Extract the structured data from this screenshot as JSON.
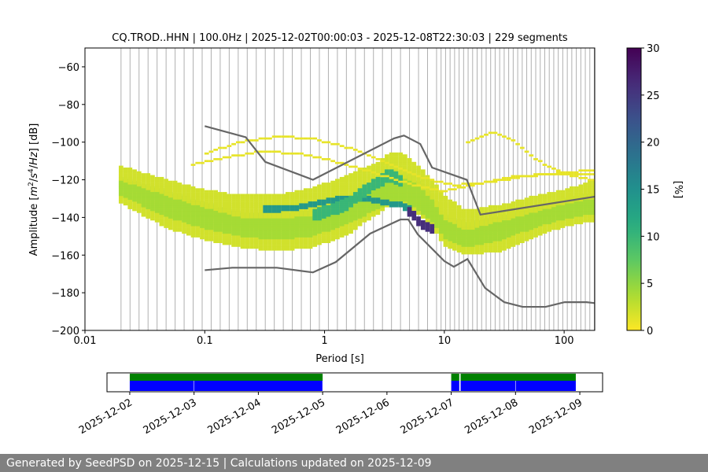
{
  "title": "CQ.TROD..HHN | 100.0Hz | 2025-12-02T00:00:03 - 2025-12-08T22:30:03 | 229 segments",
  "footer": "Generated by SeedPSD on 2025-12-15 | Calculations updated on 2025-12-09",
  "chart_data": [
    {
      "type": "heatmap",
      "title": "CQ.TROD..HHN | 100.0Hz | 2025-12-02T00:00:03 - 2025-12-08T22:30:03 | 229 segments",
      "xlabel": "Period [s]",
      "ylabel_parts": [
        "Amplitude [",
        "m",
        "2",
        "/",
        "s",
        "4",
        "/",
        "Hz",
        "] [dB]"
      ],
      "x_scale": "log",
      "xlim": [
        0.01,
        180
      ],
      "ylim": [
        -200,
        -50
      ],
      "x_ticks": [
        0.01,
        0.1,
        1,
        10,
        100
      ],
      "x_tick_labels": [
        "0.01",
        "0.1",
        "1",
        "10",
        "100"
      ],
      "y_ticks": [
        -200,
        -180,
        -160,
        -140,
        -120,
        -100,
        -80,
        -60
      ],
      "y_tick_labels": [
        "−200",
        "−180",
        "−160",
        "−140",
        "−120",
        "−100",
        "−80",
        "−60"
      ],
      "grid": "vertical lines at period bin centers",
      "colorbar": {
        "label": "[%]",
        "range": [
          0,
          30
        ],
        "ticks": [
          0,
          5,
          10,
          15,
          20,
          25,
          30
        ],
        "colormap": "viridis_r"
      },
      "psd_density_bands": [
        {
          "x": [
            0.019,
            0.05,
            0.1,
            0.2,
            0.4,
            0.8,
            1.5,
            2.5,
            3.5,
            4.5,
            6,
            8,
            10,
            15,
            30,
            60,
            100,
            180
          ],
          "low": [
            -124,
            -133,
            -140,
            -145,
            -147,
            -145,
            -139,
            -133,
            -130,
            -130,
            -134,
            -140,
            -148,
            -152,
            -147,
            -141,
            -137,
            -134
          ],
          "high": [
            -118,
            -126,
            -132,
            -137,
            -138,
            -136,
            -130,
            -124,
            -118,
            -116,
            -120,
            -128,
            -138,
            -143,
            -139,
            -134,
            -130,
            -127
          ],
          "level": 8
        },
        {
          "x": [
            0.019,
            0.05,
            0.1,
            0.2,
            0.4,
            0.8,
            1.5,
            2.5,
            3.5,
            4.5,
            6,
            8,
            10,
            15,
            30,
            60,
            100,
            180
          ],
          "low": [
            -132,
            -146,
            -152,
            -156,
            -158,
            -156,
            -150,
            -140,
            -134,
            -133,
            -138,
            -146,
            -155,
            -160,
            -158,
            -150,
            -145,
            -142
          ],
          "high": [
            -112,
            -120,
            -125,
            -128,
            -128,
            -124,
            -118,
            -112,
            -106,
            -106,
            -112,
            -120,
            -128,
            -136,
            -133,
            -128,
            -125,
            -120
          ],
          "level": 2
        },
        {
          "x": [
            0.019,
            0.05,
            0.1,
            0.2,
            0.4,
            0.8,
            1.5,
            2.5,
            3.5,
            4.5,
            6,
            8,
            10,
            15,
            30,
            60,
            100,
            180
          ],
          "low": [
            -128,
            -140,
            -146,
            -150,
            -152,
            -150,
            -144,
            -137,
            -132,
            -131,
            -136,
            -143,
            -151,
            -156,
            -152,
            -145,
            -141,
            -138
          ],
          "high": [
            -120,
            -129,
            -135,
            -140,
            -141,
            -139,
            -133,
            -126,
            -121,
            -119,
            -123,
            -131,
            -141,
            -147,
            -142,
            -137,
            -133,
            -130
          ],
          "level": 4
        },
        {
          "x": [
            0.3,
            0.6,
            1.0,
            1.6,
            2.5,
            3.5,
            4.5,
            5.2
          ],
          "low": [
            -138,
            -136,
            -133,
            -131,
            -132,
            -134,
            -135,
            -139
          ],
          "high": [
            -134,
            -133,
            -130,
            -128,
            -129,
            -131,
            -132,
            -134
          ],
          "level": 14
        },
        {
          "x": [
            0.8,
            1.5,
            2.5,
            3.5,
            4.5
          ],
          "low": [
            -142,
            -137,
            -126,
            -121,
            -124
          ],
          "high": [
            -136,
            -130,
            -120,
            -114,
            -118
          ],
          "level": 10
        },
        {
          "x": [
            5.0,
            5.6,
            6.2,
            7.0,
            8.0
          ],
          "low": [
            -139,
            -142,
            -145,
            -147,
            -149
          ],
          "high": [
            -134,
            -137,
            -140,
            -142,
            -144
          ],
          "level": 26
        }
      ],
      "psd_density_scatter": [
        {
          "x": [
            0.1,
            0.2,
            0.4,
            0.8,
            1.6,
            3,
            6,
            12,
            25,
            50,
            100,
            180
          ],
          "y": [
            -106,
            -100,
            -97,
            -98,
            -103,
            -110,
            -118,
            -123,
            -121,
            -118,
            -116,
            -115
          ],
          "level": 1
        },
        {
          "x": [
            0.08,
            0.15,
            0.3,
            0.6,
            1.2,
            2.5,
            5,
            10,
            20,
            40,
            80,
            180
          ],
          "y": [
            -112,
            -108,
            -105,
            -106,
            -110,
            -116,
            -122,
            -126,
            -122,
            -118,
            -117,
            -117
          ],
          "level": 1
        },
        {
          "x": [
            15,
            20,
            25,
            30,
            40,
            50,
            70,
            100,
            180
          ],
          "y": [
            -101,
            -97,
            -95,
            -96,
            -100,
            -106,
            -112,
            -117,
            -120
          ],
          "level": 1
        }
      ],
      "noise_model_upper": {
        "x": [
          0.1,
          0.22,
          0.32,
          0.8,
          3.8,
          4.6,
          6.3,
          7.9,
          15.4,
          20,
          354.8
        ],
        "y": [
          -91.5,
          -97.4,
          -110.5,
          -120,
          -98,
          -96.5,
          -101,
          -113.5,
          -120,
          -138.5,
          -126
        ]
      },
      "noise_model_lower": {
        "x": [
          0.1,
          0.17,
          0.4,
          0.8,
          1.24,
          2.4,
          4.3,
          5,
          6,
          10,
          12,
          15.6,
          21.9,
          31.6,
          45,
          70,
          101,
          154,
          180
        ],
        "y": [
          -168,
          -166.7,
          -166.7,
          -169.2,
          -163.7,
          -148.6,
          -141.1,
          -141.1,
          -149,
          -163.2,
          -166.2,
          -162.1,
          -177.5,
          -185,
          -187.5,
          -187.5,
          -185,
          -185,
          -185.5
        ]
      }
    },
    {
      "type": "timeline",
      "x_ticks": [
        "2025-12-02",
        "2025-12-03",
        "2025-12-04",
        "2025-12-05",
        "2025-12-06",
        "2025-12-07",
        "2025-12-08",
        "2025-12-09"
      ],
      "xlim": [
        "2025-12-01T15:30",
        "2025-12-09T08:30"
      ],
      "colors": {
        "data_available": "#0000ff",
        "psd_computed": "#008000"
      },
      "data_available": [
        {
          "start": "2025-12-02T00:00",
          "end": "2025-12-02T23:55"
        },
        {
          "start": "2025-12-03T00:05",
          "end": "2025-12-04T23:55"
        },
        {
          "start": "2025-12-07T00:00",
          "end": "2025-12-07T03:00"
        },
        {
          "start": "2025-12-07T03:30",
          "end": "2025-12-07T23:55"
        },
        {
          "start": "2025-12-08T00:05",
          "end": "2025-12-08T22:30"
        }
      ],
      "psd_computed": [
        {
          "start": "2025-12-02T00:00",
          "end": "2025-12-05T00:00"
        },
        {
          "start": "2025-12-07T00:00",
          "end": "2025-12-07T03:00"
        },
        {
          "start": "2025-12-07T03:30",
          "end": "2025-12-08T22:30"
        }
      ]
    }
  ]
}
